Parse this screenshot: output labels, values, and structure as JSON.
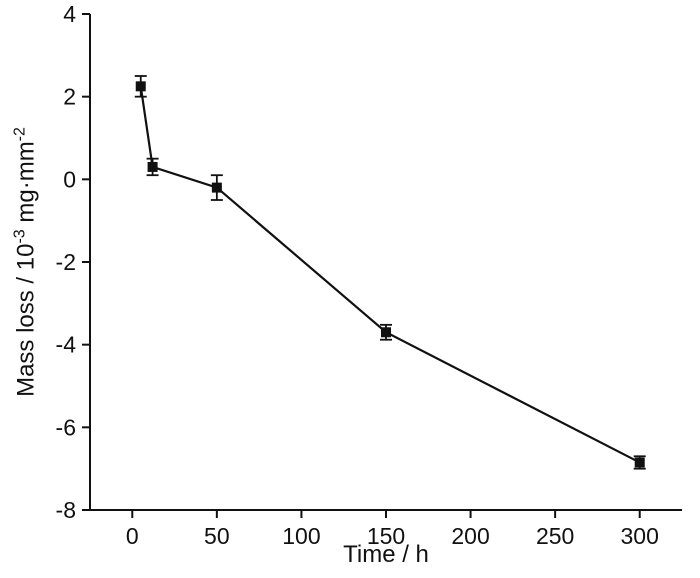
{
  "chart_data": {
    "type": "line",
    "title": "",
    "xlabel": "Time / h",
    "ylabel_text": "Mass loss / 10^-3 mg·mm^-2",
    "ylabel_parts": {
      "prefix": "Mass loss  / 10",
      "sup1": "-3",
      "mid": " mg·mm",
      "sup2": "-2"
    },
    "x": [
      5,
      12,
      50,
      150,
      300
    ],
    "y": [
      2.25,
      0.3,
      -0.2,
      -3.7,
      -6.85
    ],
    "yerr": [
      0.25,
      0.2,
      0.3,
      0.18,
      0.15
    ],
    "xlim": [
      -25,
      325
    ],
    "ylim": [
      -8,
      4
    ],
    "xticks": [
      0,
      50,
      100,
      150,
      200,
      250,
      300
    ],
    "yticks": [
      -8,
      -6,
      -4,
      -2,
      0,
      2,
      4
    ],
    "marker": "square",
    "line_color": "#111111",
    "marker_color": "#111111",
    "grid": false,
    "legend_position": "none"
  }
}
